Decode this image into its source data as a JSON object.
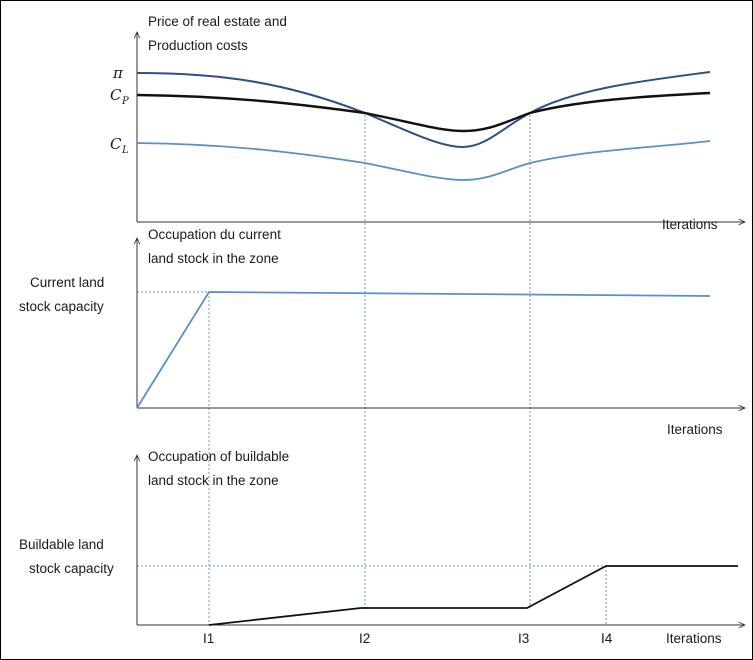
{
  "colors": {
    "pi_curve": "#2f4f86",
    "cp_curve": "#111111",
    "cl_curve": "#5b8fc6",
    "current_stock": "#5b8fc6",
    "buildable_stock": "#111111",
    "guide": "#5b9bd5"
  },
  "chart_data": [
    {
      "type": "line",
      "title_lines": [
        "Price of real estate and",
        "Production costs"
      ],
      "xlabel": "Iterations",
      "y_symbols": {
        "pi": "π",
        "cp": "C",
        "cp_sub": "P",
        "cl": "C",
        "cl_sub": "L"
      },
      "series": [
        {
          "name": "π",
          "x": [
            0,
            0.2,
            0.4,
            0.55,
            0.7,
            0.85,
            1.0
          ],
          "values": [
            0.9,
            0.83,
            0.62,
            0.5,
            0.7,
            0.82,
            0.9
          ]
        },
        {
          "name": "C_P",
          "x": [
            0,
            0.2,
            0.4,
            0.55,
            0.7,
            0.85,
            1.0
          ],
          "values": [
            0.72,
            0.7,
            0.62,
            0.58,
            0.64,
            0.69,
            0.72
          ]
        },
        {
          "name": "C_L",
          "x": [
            0,
            0.2,
            0.4,
            0.55,
            0.7,
            0.85,
            1.0
          ],
          "values": [
            0.43,
            0.4,
            0.32,
            0.27,
            0.35,
            0.41,
            0.43
          ]
        }
      ]
    },
    {
      "type": "line",
      "title_lines": [
        "Occupation du current",
        "land stock in the zone"
      ],
      "xlabel": "Iterations",
      "ylabel_lines": [
        "Current land",
        "stock capacity"
      ],
      "series": [
        {
          "x": [
            0,
            1,
            7.5
          ],
          "values": [
            0,
            1,
            0.985
          ]
        }
      ]
    },
    {
      "type": "line",
      "title_lines": [
        "Occupation of buildable",
        "land stock in the zone"
      ],
      "xlabel": "Iterations",
      "ylabel_lines": [
        "Buildable land",
        "stock capacity"
      ],
      "x_ticks": [
        "I1",
        "I2",
        "I3",
        "I4"
      ],
      "series": [
        {
          "x": [
            "I1",
            "I2",
            "I3",
            "I4",
            "end"
          ],
          "values": [
            0,
            0.3,
            0.3,
            1,
            1
          ]
        }
      ]
    }
  ]
}
